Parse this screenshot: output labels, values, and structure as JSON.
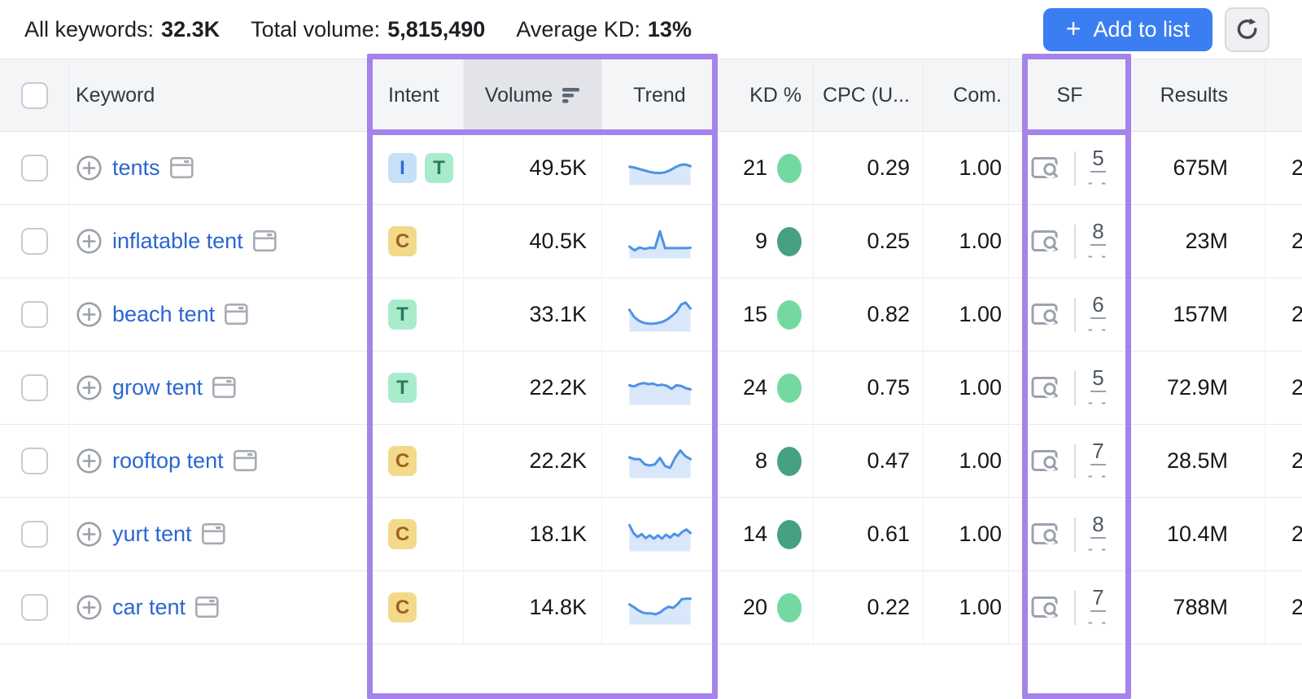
{
  "topbar": {
    "stats": [
      {
        "label": "All keywords:",
        "value": "32.3K"
      },
      {
        "label": "Total volume:",
        "value": "5,815,490"
      },
      {
        "label": "Average KD:",
        "value": "13%"
      }
    ],
    "buttons": {
      "plus": "+",
      "add_to_list": "Add to list"
    }
  },
  "table": {
    "headers": {
      "keyword": "Keyword",
      "intent": "Intent",
      "volume": "Volume",
      "trend": "Trend",
      "kd": "KD %",
      "cpc": "CPC (U...",
      "com": "Com.",
      "sf": "SF",
      "results": "Results"
    },
    "sorted_column": "Volume",
    "rows": [
      {
        "keyword": "tents",
        "intents": [
          "I",
          "T"
        ],
        "volume": "49.5K",
        "kd": "21",
        "kd_level": "light",
        "cpc": "0.29",
        "com": "1.00",
        "sf": "5",
        "sf_sub": "- -",
        "results": "675M",
        "edge": "2",
        "trend": [
          58,
          55,
          50,
          45,
          40,
          37,
          36,
          39,
          46,
          56,
          64,
          66,
          60
        ]
      },
      {
        "keyword": "inflatable tent",
        "intents": [
          "C"
        ],
        "volume": "40.5K",
        "kd": "9",
        "kd_level": "dark",
        "cpc": "0.25",
        "com": "1.00",
        "sf": "8",
        "sf_sub": "- -",
        "results": "23M",
        "edge": "2",
        "trend": [
          35,
          22,
          32,
          27,
          31,
          30,
          88,
          30,
          30,
          30,
          30,
          30,
          31
        ]
      },
      {
        "keyword": "beach tent",
        "intents": [
          "T"
        ],
        "volume": "33.1K",
        "kd": "15",
        "kd_level": "light",
        "cpc": "0.82",
        "com": "1.00",
        "sf": "6",
        "sf_sub": "- -",
        "results": "157M",
        "edge": "2",
        "trend": [
          70,
          45,
          32,
          25,
          22,
          22,
          24,
          28,
          36,
          48,
          62,
          88,
          95,
          74
        ]
      },
      {
        "keyword": "grow tent",
        "intents": [
          "T"
        ],
        "volume": "22.2K",
        "kd": "24",
        "kd_level": "light",
        "cpc": "0.75",
        "com": "1.00",
        "sf": "5",
        "sf_sub": "- -",
        "results": "72.9M",
        "edge": "2",
        "trend": [
          62,
          58,
          66,
          70,
          66,
          68,
          62,
          64,
          60,
          50,
          62,
          60,
          52,
          48
        ]
      },
      {
        "keyword": "rooftop tent",
        "intents": [
          "C"
        ],
        "volume": "22.2K",
        "kd": "8",
        "kd_level": "dark",
        "cpc": "0.47",
        "com": "1.00",
        "sf": "7",
        "sf_sub": "- -",
        "results": "28.5M",
        "edge": "2",
        "trend": [
          66,
          60,
          60,
          42,
          38,
          42,
          64,
          36,
          30,
          66,
          90,
          70,
          60
        ]
      },
      {
        "keyword": "yurt tent",
        "intents": [
          "C"
        ],
        "volume": "18.1K",
        "kd": "14",
        "kd_level": "dark",
        "cpc": "0.61",
        "com": "1.00",
        "sf": "8",
        "sf_sub": "- -",
        "results": "10.4M",
        "edge": "2",
        "trend": [
          85,
          58,
          44,
          54,
          40,
          50,
          38,
          50,
          38,
          52,
          42,
          55,
          48,
          62,
          70,
          58
        ]
      },
      {
        "keyword": "car tent",
        "intents": [
          "C"
        ],
        "volume": "14.8K",
        "kd": "20",
        "kd_level": "light",
        "cpc": "0.22",
        "com": "1.00",
        "sf": "7",
        "sf_sub": "- -",
        "results": "788M",
        "edge": "2",
        "trend": [
          64,
          55,
          44,
          36,
          33,
          33,
          30,
          36,
          48,
          56,
          52,
          64,
          82,
          84,
          84
        ]
      }
    ]
  },
  "icons": [
    "plus-icon",
    "refresh-icon",
    "add-keyword-icon",
    "serp-preview-icon",
    "sort-desc-icon",
    "serp-features-icon"
  ],
  "colors": {
    "accent_purple": "#a583ea",
    "link_blue": "#2a66d4",
    "button_blue": "#3b7ef2",
    "kd_light_green": "#74d9a1",
    "kd_dark_green": "#46a181",
    "spark_line": "#4e92e6",
    "spark_fill": "#d8e7fa",
    "intent_badges": {
      "I": {
        "bg": "#c6e0f8",
        "fg": "#2e6dd2"
      },
      "T": {
        "bg": "#a8eccc",
        "fg": "#297a62"
      },
      "C": {
        "bg": "#f3da8a",
        "fg": "#9c6220"
      }
    }
  }
}
